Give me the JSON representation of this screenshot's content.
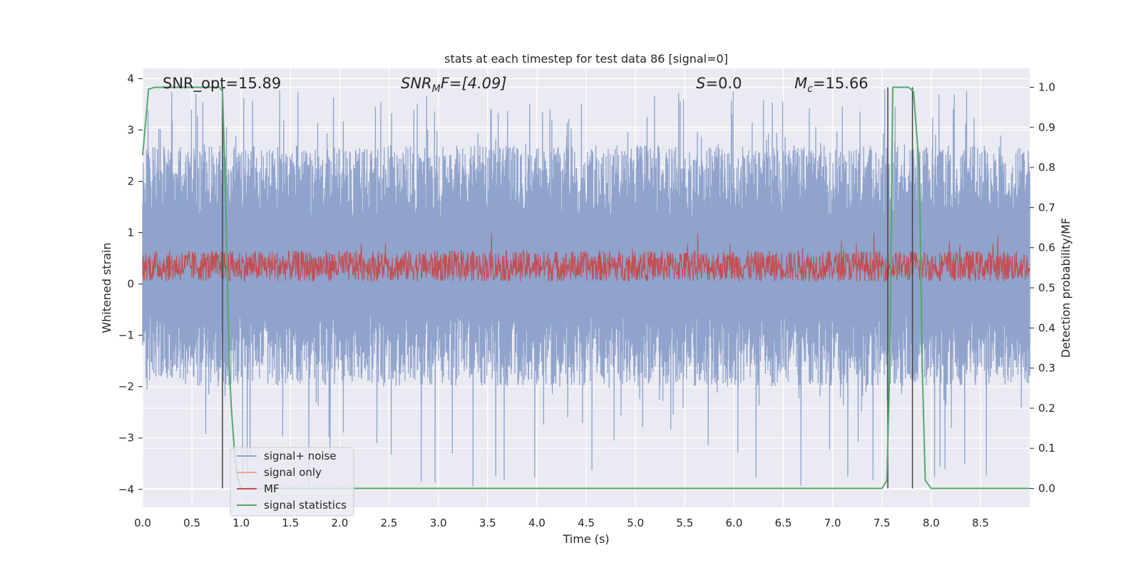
{
  "chart_data": {
    "type": "line",
    "title": "stats at each timestep for test data 86 [signal=0]",
    "xlabel": "Time (s)",
    "ylabel": "Whitened strain",
    "ylabel_right": "Detection probability/MF",
    "xlim": [
      0.0,
      9.0
    ],
    "ylim": [
      -4.35,
      4.2
    ],
    "ylim_right": [
      -0.047,
      1.047
    ],
    "x_ticks": [
      0.0,
      0.5,
      1.0,
      1.5,
      2.0,
      2.5,
      3.0,
      3.5,
      4.0,
      4.5,
      5.0,
      5.5,
      6.0,
      6.5,
      7.0,
      7.5,
      8.0,
      8.5
    ],
    "x_tick_labels": [
      "0.0",
      "0.5",
      "1.0",
      "1.5",
      "2.0",
      "2.5",
      "3.0",
      "3.5",
      "4.0",
      "4.5",
      "5.0",
      "5.5",
      "6.0",
      "6.5",
      "7.0",
      "7.5",
      "8.0",
      "8.5"
    ],
    "y_ticks": [
      4,
      3,
      2,
      1,
      0,
      -1,
      -2,
      -3,
      -4
    ],
    "y_tick_labels": [
      "4",
      "3",
      "2",
      "1",
      "0",
      "−1",
      "−2",
      "−3",
      "−4"
    ],
    "y_ticks_right": [
      1.0,
      0.9,
      0.8,
      0.7,
      0.6,
      0.5,
      0.4,
      0.3,
      0.2,
      0.1,
      0.0
    ],
    "y_tick_labels_right": [
      "1.0",
      "0.9",
      "0.8",
      "0.7",
      "0.6",
      "0.5",
      "0.4",
      "0.3",
      "0.2",
      "0.1",
      "0.0"
    ],
    "grid": true,
    "legend_placement": "lower-left",
    "annotations": {
      "snr_opt": "SNR_opt=15.89",
      "snr_mf_base": "SNR",
      "snr_mf_sub": "M",
      "snr_mf_tail": "F=[4.09]",
      "s_var": "S",
      "s_tail": "=0.0",
      "mc_var": "M",
      "mc_sub": "c",
      "mc_tail": "=15.66"
    },
    "vertical_lines_x": [
      0.81,
      7.56,
      7.81
    ],
    "series": [
      {
        "name": "signal+ noise",
        "color": "#8fa3cc",
        "axis": "left",
        "description_only": false,
        "band_low": -1.5,
        "band_high": 2.2,
        "peak_max": 3.8,
        "peak_min": -4.0
      },
      {
        "name": "signal only",
        "color": "#e8a88a",
        "axis": "left"
      },
      {
        "name": "MF",
        "color": "#c44e52",
        "axis": "left",
        "band_low": 0.0,
        "band_high": 0.65,
        "peak_max": 1.0
      },
      {
        "name": "signal statistics",
        "color": "#55a868",
        "axis": "right",
        "x": [
          0.0,
          0.06,
          0.12,
          0.2,
          0.78,
          0.81,
          0.84,
          0.88,
          0.9,
          0.93,
          0.96,
          1.0,
          7.5,
          7.55,
          7.58,
          7.61,
          7.65,
          7.77,
          7.82,
          7.88,
          7.91,
          7.94,
          8.0,
          9.0
        ],
        "y": [
          0.83,
          0.995,
          1.0,
          1.0,
          1.0,
          0.99,
          0.75,
          0.3,
          0.2,
          0.1,
          0.03,
          0.0,
          0.0,
          0.02,
          0.3,
          1.0,
          1.0,
          1.0,
          0.99,
          0.8,
          0.3,
          0.02,
          0.0,
          0.0
        ]
      }
    ]
  },
  "colors": {
    "plot_bg": "#eaeaf2",
    "grid": "#ffffff",
    "vline": "#444444"
  }
}
